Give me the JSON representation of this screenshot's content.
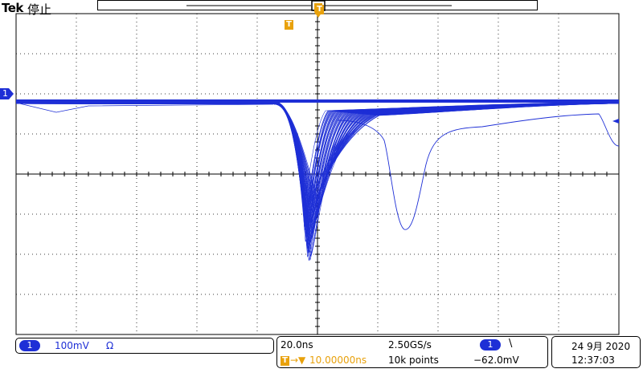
{
  "header": {
    "brand": "Tek",
    "run_state": "停止"
  },
  "trigger_marker": {
    "label": "T"
  },
  "channel1_marker": {
    "label": "1"
  },
  "channel1_status": {
    "channel": "1",
    "scale": "100mV",
    "coupling": "Ω"
  },
  "timebase": {
    "time_per_div": "20.0ns",
    "sample_rate": "2.50GS/s",
    "trigger_channel": "1",
    "trigger_slope": "\\",
    "trigger_position_symbol": "T",
    "trigger_position_prefix": "→▼",
    "trigger_position": "10.00000ns",
    "record_length": "10k points",
    "trigger_level": "−62.0mV"
  },
  "datetime": {
    "date": "24 9月 2020",
    "time": "12:37:03"
  },
  "colors": {
    "trace": "#1e2fd6",
    "trigger": "#e8a10c",
    "grid": "#000000",
    "background": "#ffffff"
  }
}
